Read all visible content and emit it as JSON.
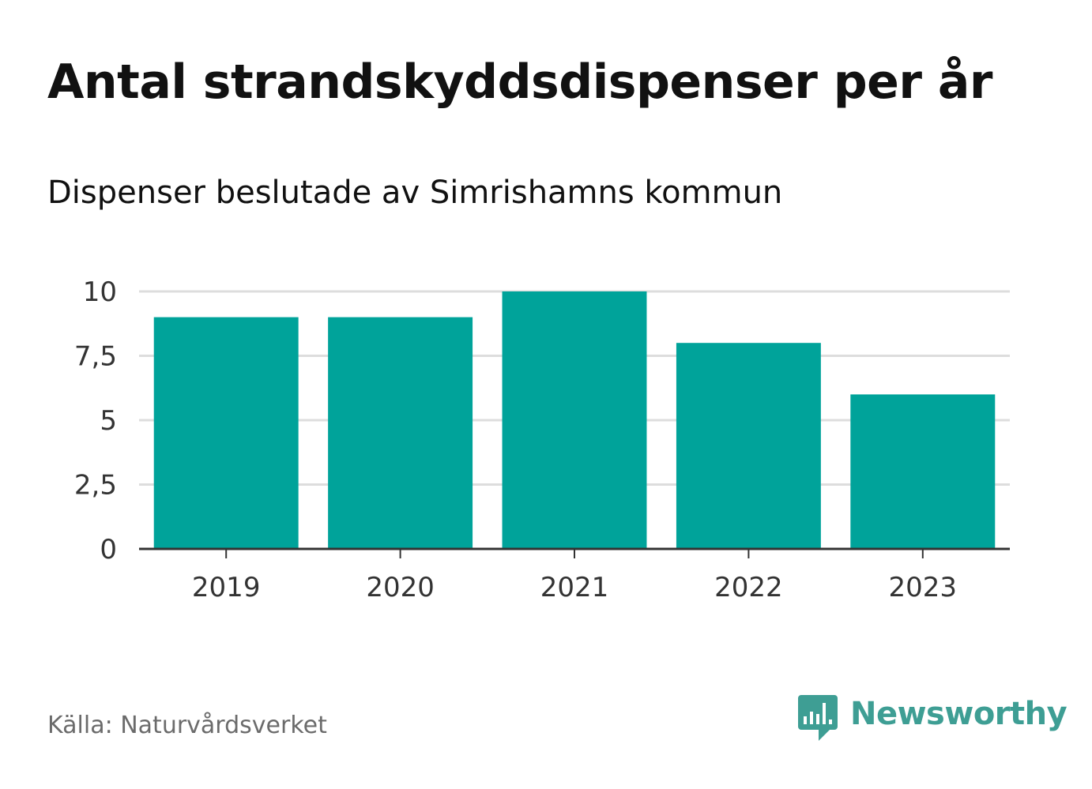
{
  "header": {
    "title": "Antal strandskyddsdispenser per år",
    "subtitle": "Dispenser beslutade av Simrishamns kommun"
  },
  "footer": {
    "source": "Källa: Naturvårdsverket",
    "brand_name": "Newsworthy"
  },
  "colors": {
    "bar": "#00a39a",
    "grid": "#dddddd",
    "axis": "#333333",
    "tick_text": "#333333",
    "brand": "#3e9e94"
  },
  "icons": {
    "brand_logo": "newsworthy-logo-icon"
  },
  "chart_data": {
    "type": "bar",
    "title": "Antal strandskyddsdispenser per år",
    "subtitle": "Dispenser beslutade av Simrishamns kommun",
    "xlabel": "",
    "ylabel": "",
    "categories": [
      "2019",
      "2020",
      "2021",
      "2022",
      "2023"
    ],
    "values": [
      9,
      9,
      10,
      8,
      6
    ],
    "ylim": [
      0,
      10
    ],
    "yticks": [
      0,
      2.5,
      5,
      7.5,
      10
    ],
    "ytick_labels": [
      "0",
      "2,5",
      "5",
      "7,5",
      "10"
    ],
    "grid": true,
    "legend": "none"
  }
}
